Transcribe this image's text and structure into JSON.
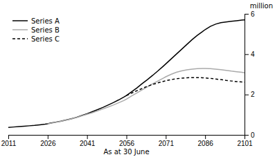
{
  "chart_data": {
    "type": "line",
    "xlabel": "As at 30 June",
    "ylabel": "million",
    "xlim": [
      2011,
      2101
    ],
    "ylim": [
      0,
      6
    ],
    "xticks": [
      2011,
      2026,
      2041,
      2056,
      2071,
      2086,
      2101
    ],
    "yticks": [
      0,
      2,
      4,
      6
    ],
    "legend": "upper left",
    "series": [
      {
        "name": "Series A",
        "color": "#000000",
        "line_style": "solid",
        "x": [
          2011,
          2013,
          2015,
          2017,
          2019,
          2021,
          2023,
          2025,
          2026,
          2027,
          2029,
          2031,
          2033,
          2035,
          2037,
          2039,
          2041,
          2043,
          2045,
          2047,
          2049,
          2051,
          2053,
          2055,
          2056,
          2058,
          2060,
          2062,
          2064,
          2066,
          2068,
          2070,
          2071,
          2073,
          2075,
          2077,
          2079,
          2081,
          2083,
          2085,
          2086,
          2088,
          2090,
          2092,
          2094,
          2096,
          2098,
          2100,
          2101
        ],
        "values": [
          0.37,
          0.39,
          0.41,
          0.43,
          0.45,
          0.47,
          0.5,
          0.53,
          0.55,
          0.58,
          0.63,
          0.68,
          0.74,
          0.8,
          0.87,
          0.96,
          1.05,
          1.15,
          1.25,
          1.36,
          1.48,
          1.6,
          1.73,
          1.87,
          1.95,
          2.14,
          2.33,
          2.54,
          2.74,
          2.95,
          3.17,
          3.4,
          3.52,
          3.76,
          4.0,
          4.24,
          4.48,
          4.72,
          4.93,
          5.12,
          5.22,
          5.38,
          5.49,
          5.56,
          5.6,
          5.63,
          5.66,
          5.69,
          5.7
        ]
      },
      {
        "name": "Series B",
        "color": "#aaaaaa",
        "line_style": "solid",
        "x": [
          2026,
          2027,
          2029,
          2031,
          2033,
          2035,
          2037,
          2039,
          2041,
          2043,
          2045,
          2047,
          2049,
          2051,
          2053,
          2055,
          2056,
          2058,
          2060,
          2062,
          2064,
          2066,
          2068,
          2070,
          2071,
          2073,
          2075,
          2077,
          2079,
          2081,
          2083,
          2085,
          2086,
          2088,
          2090,
          2092,
          2094,
          2096,
          2098,
          2100,
          2101
        ],
        "values": [
          0.54,
          0.57,
          0.62,
          0.67,
          0.73,
          0.79,
          0.86,
          0.94,
          1.02,
          1.1,
          1.19,
          1.28,
          1.38,
          1.48,
          1.59,
          1.7,
          1.77,
          1.93,
          2.08,
          2.23,
          2.38,
          2.53,
          2.67,
          2.81,
          2.88,
          3.0,
          3.1,
          3.17,
          3.22,
          3.26,
          3.28,
          3.29,
          3.29,
          3.28,
          3.26,
          3.23,
          3.2,
          3.16,
          3.13,
          3.1,
          3.08
        ]
      },
      {
        "name": "Series C",
        "color": "#000000",
        "line_style": "dashed",
        "x": [
          2056,
          2058,
          2060,
          2062,
          2064,
          2066,
          2068,
          2070,
          2071,
          2073,
          2075,
          2077,
          2079,
          2081,
          2083,
          2085,
          2086,
          2088,
          2090,
          2092,
          2094,
          2096,
          2098,
          2100,
          2101
        ],
        "values": [
          1.95,
          2.07,
          2.19,
          2.3,
          2.41,
          2.5,
          2.58,
          2.65,
          2.68,
          2.74,
          2.78,
          2.81,
          2.83,
          2.84,
          2.84,
          2.83,
          2.82,
          2.8,
          2.77,
          2.74,
          2.7,
          2.67,
          2.64,
          2.62,
          2.61
        ]
      }
    ]
  }
}
